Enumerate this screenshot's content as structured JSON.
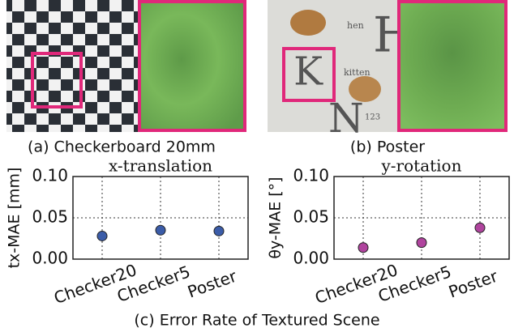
{
  "panels": [
    {
      "caption": "(a) Checkerboard 20mm"
    },
    {
      "caption": "(b) Poster",
      "poster_texts": [
        "H",
        "K",
        "N",
        "hen",
        "kitten",
        "123"
      ]
    }
  ],
  "figure_caption": "(c) Error Rate of Textured Scene",
  "chart_data": [
    {
      "type": "scatter",
      "title": "x-translation",
      "y_label": "tx-MAE [mm]",
      "categories": [
        "Checker20",
        "Checker5",
        "Poster"
      ],
      "values": [
        0.028,
        0.035,
        0.034
      ],
      "color": "#3b5ca8",
      "ylim": [
        0,
        0.1
      ],
      "yticks": [
        {
          "value": 0,
          "label": "0.00"
        },
        {
          "value": 0.05,
          "label": "0.05"
        },
        {
          "value": 0.1,
          "label": "0.10"
        }
      ],
      "grid": true
    },
    {
      "type": "scatter",
      "title": "y-rotation",
      "y_label": "θy-MAE [°]",
      "categories": [
        "Checker20",
        "Checker5",
        "Poster"
      ],
      "values": [
        0.014,
        0.02,
        0.038
      ],
      "color": "#b0449e",
      "ylim": [
        0,
        0.1
      ],
      "yticks": [
        {
          "value": 0,
          "label": "0.00"
        },
        {
          "value": 0.05,
          "label": "0.05"
        },
        {
          "value": 0.1,
          "label": "0.10"
        }
      ],
      "grid": true
    }
  ]
}
